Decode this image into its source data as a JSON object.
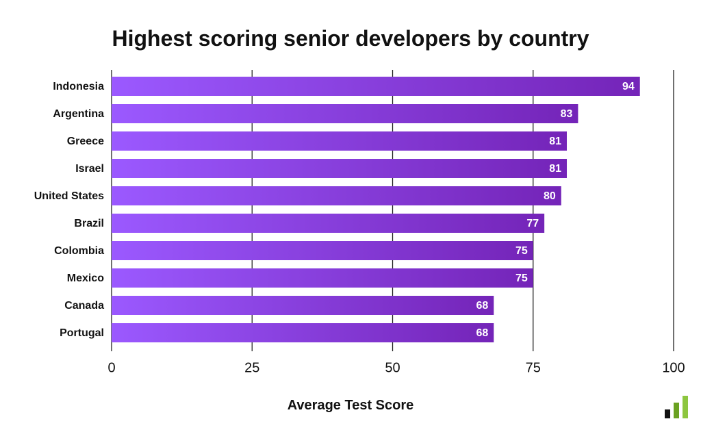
{
  "chart_data": {
    "type": "bar",
    "orientation": "horizontal",
    "title": "Highest scoring senior developers by country",
    "xlabel": "Average Test Score",
    "ylabel": "",
    "xlim": [
      0,
      100
    ],
    "xticks": [
      0,
      25,
      50,
      75,
      100
    ],
    "grid": true,
    "categories": [
      "Indonesia",
      "Argentina",
      "Greece",
      "Israel",
      "United States",
      "Brazil",
      "Colombia",
      "Mexico",
      "Canada",
      "Portugal"
    ],
    "values": [
      94,
      83,
      81,
      81,
      80,
      77,
      75,
      75,
      68,
      68
    ],
    "colors": {
      "bar_start": "#9B59FF",
      "bar_end": "#7424B8",
      "label": "#ffffff",
      "gridline": "#222222",
      "text": "#111111"
    }
  },
  "branding": {
    "logo_name": "bar-chart-logo",
    "logo_colors": [
      "#111111",
      "#6AA121",
      "#8DC63F"
    ]
  }
}
